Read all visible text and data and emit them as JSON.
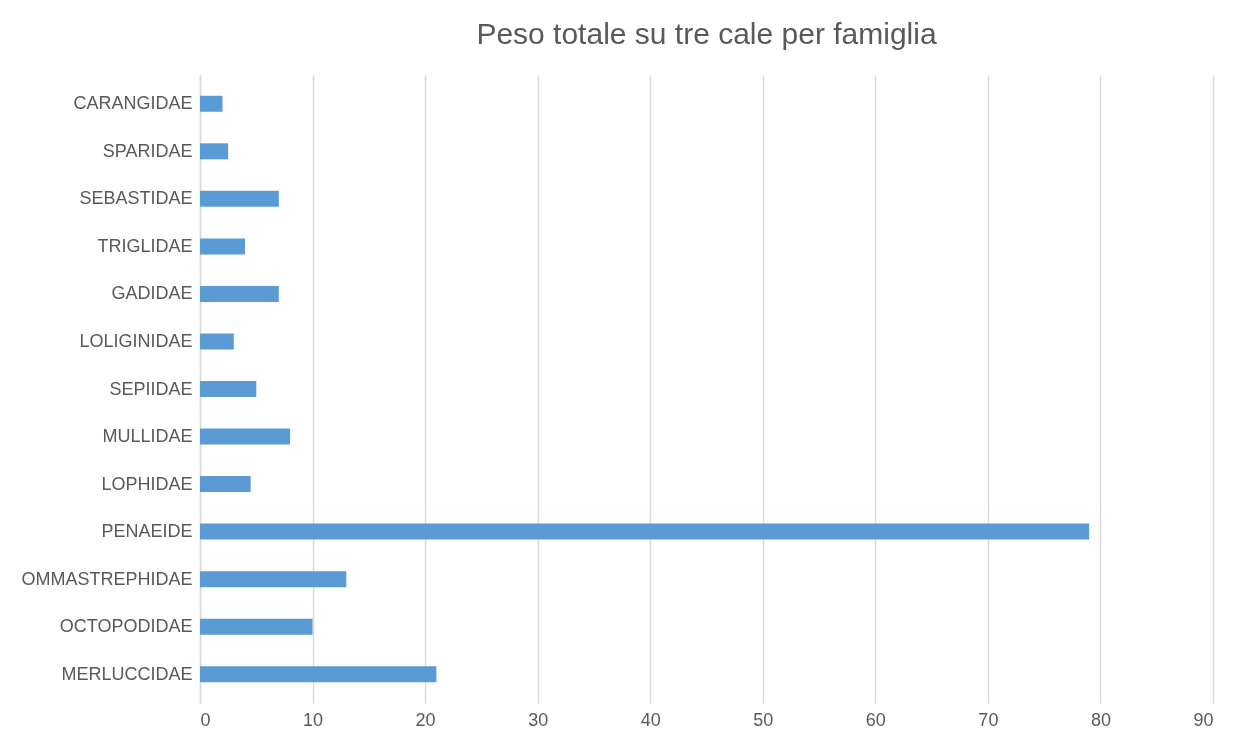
{
  "chart_data": {
    "type": "bar",
    "orientation": "horizontal",
    "title": "Peso totale su tre cale per famiglia",
    "categories": [
      "CARANGIDAE",
      "SPARIDAE",
      "SEBASTIDAE",
      "TRIGLIDAE",
      "GADIDAE",
      "LOLIGINIDAE",
      "SEPIIDAE",
      "MULLIDAE",
      "LOPHIDAE",
      "PENAEIDE",
      "OMMASTREPHIDAE",
      "OCTOPODIDAE",
      "MERLUCCIDAE"
    ],
    "values": [
      2,
      2.5,
      7,
      4,
      7,
      3,
      5,
      8,
      4.5,
      79,
      13,
      10,
      21
    ],
    "color": "#5b9bd5",
    "xlim": [
      0,
      90
    ],
    "xticks": [
      0,
      10,
      20,
      30,
      40,
      50,
      60,
      70,
      80,
      90
    ],
    "grid": "x"
  }
}
